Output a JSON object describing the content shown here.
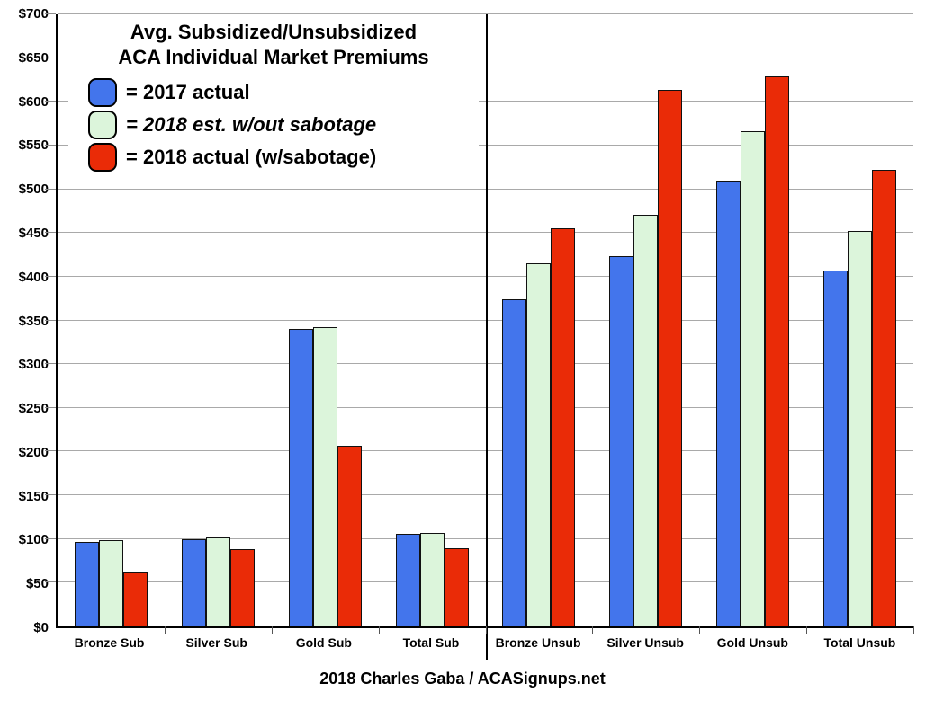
{
  "title": {
    "line1": "Avg. Subsidized/Unsubsidized",
    "line2": "ACA Individual Market Premiums"
  },
  "legend": {
    "items": [
      {
        "label": "= 2017 actual",
        "color": "#4375EC",
        "style": "normal"
      },
      {
        "label": "= 2018 est. w/out sabotage",
        "color": "#DCF5DB",
        "style": "italic"
      },
      {
        "label": "= 2018 actual (w/sabotage)",
        "color": "#EA2B07",
        "style": "normal"
      }
    ]
  },
  "footer": {
    "credit": "2018 Charles Gaba / ACASignups.net"
  },
  "colors": {
    "grid": "#A9A9A9",
    "axis": "#000000",
    "bar_border": "#111111",
    "background": "#FFFFFF",
    "blue": "#4375EC",
    "green": "#DCF5DB",
    "red": "#EA2B07"
  },
  "chart_data": {
    "type": "bar",
    "title": "Avg. Subsidized/Unsubsidized ACA Individual Market Premiums",
    "categories": [
      "Bronze Sub",
      "Silver Sub",
      "Gold Sub",
      "Total Sub",
      "Bronze Unsub",
      "Silver Unsub",
      "Gold Unsub",
      "Total Unsub"
    ],
    "series": [
      {
        "name": "2017 actual",
        "color": "#4375EC",
        "values": [
          97,
          100,
          340,
          106,
          374,
          424,
          510,
          407
        ]
      },
      {
        "name": "2018 est. w/out sabotage",
        "color": "#DCF5DB",
        "values": [
          99,
          102,
          342,
          107,
          415,
          471,
          566,
          452
        ]
      },
      {
        "name": "2018 actual (w/sabotage)",
        "color": "#EA2B07",
        "values": [
          62,
          88,
          207,
          89,
          455,
          614,
          629,
          522
        ]
      }
    ],
    "ylim": [
      0,
      700
    ],
    "ytick_step": 50,
    "ytick_labels": [
      "$0",
      "$50",
      "$100",
      "$150",
      "$200",
      "$250",
      "$300",
      "$350",
      "$400",
      "$450",
      "$500",
      "$550",
      "$600",
      "$650",
      "$700"
    ],
    "grid": true,
    "legend_position": "top-left",
    "divider_after_category_index": 3,
    "currency_prefix": "$"
  }
}
